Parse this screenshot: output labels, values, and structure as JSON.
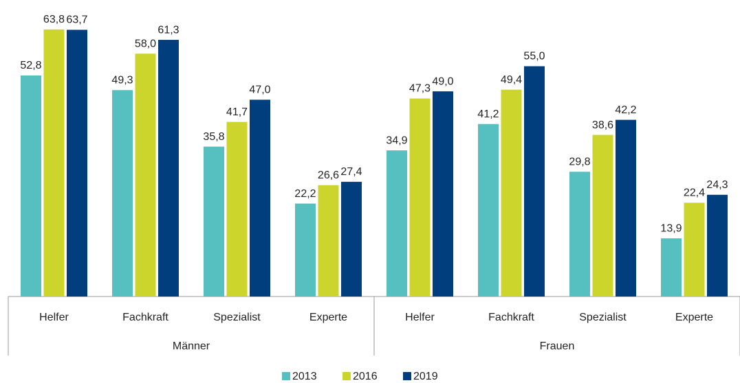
{
  "chart_data": {
    "type": "bar",
    "categories": [
      "Helfer",
      "Fachkraft",
      "Spezialist",
      "Experte",
      "Helfer",
      "Fachkraft",
      "Spezialist",
      "Experte"
    ],
    "groups": [
      "Männer",
      "Frauen"
    ],
    "series": [
      {
        "name": "2013",
        "color": "#56bfc0",
        "values": [
          52.8,
          49.3,
          35.8,
          22.2,
          34.9,
          41.2,
          29.8,
          13.9
        ],
        "value_labels": [
          "52,8",
          "49,3",
          "35,8",
          "22,2",
          "34,9",
          "41,2",
          "29,8",
          "13,9"
        ]
      },
      {
        "name": "2016",
        "color": "#ccd52b",
        "values": [
          63.8,
          58.0,
          41.7,
          26.6,
          47.3,
          49.4,
          38.6,
          22.4
        ],
        "value_labels": [
          "63,8",
          "58,0",
          "41,7",
          "26,6",
          "47,3",
          "49,4",
          "38,6",
          "22,4"
        ]
      },
      {
        "name": "2019",
        "color": "#003e7e",
        "values": [
          63.7,
          61.3,
          47.0,
          27.4,
          49.0,
          55.0,
          42.2,
          24.3
        ],
        "value_labels": [
          "63,7",
          "61,3",
          "47,0",
          "27,4",
          "49,0",
          "55,0",
          "42,2",
          "24,3"
        ]
      }
    ],
    "ylim": [
      0,
      70
    ]
  }
}
